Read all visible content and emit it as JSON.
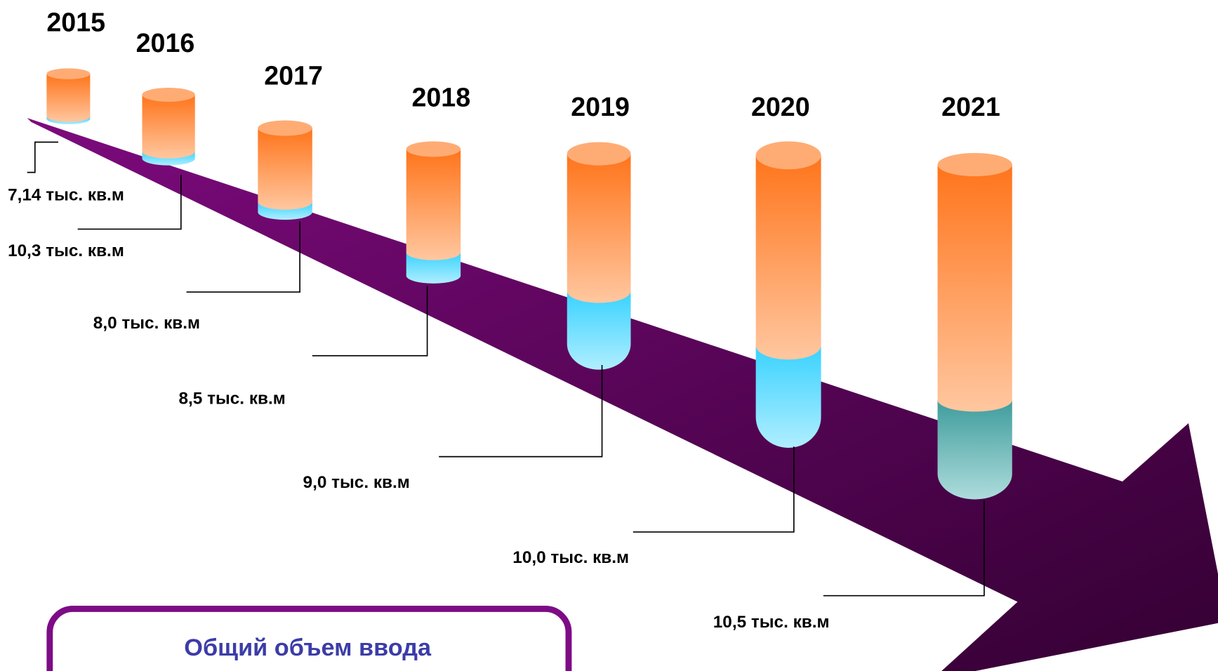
{
  "items": [
    {
      "year": "2015",
      "label": "7,14 тыс. кв.м"
    },
    {
      "year": "2016",
      "label": "10,3 тыс. кв.м"
    },
    {
      "year": "2017",
      "label": "8,0 тыс. кв.м"
    },
    {
      "year": "2018",
      "label": "8,5 тыс. кв.м"
    },
    {
      "year": "2019",
      "label": "9,0 тыс. кв.м"
    },
    {
      "year": "2020",
      "label": "10,0 тыс. кв.м"
    },
    {
      "year": "2021",
      "label": "10,5 тыс. кв.м"
    }
  ],
  "summary": {
    "title": "Общий объем ввода"
  }
}
